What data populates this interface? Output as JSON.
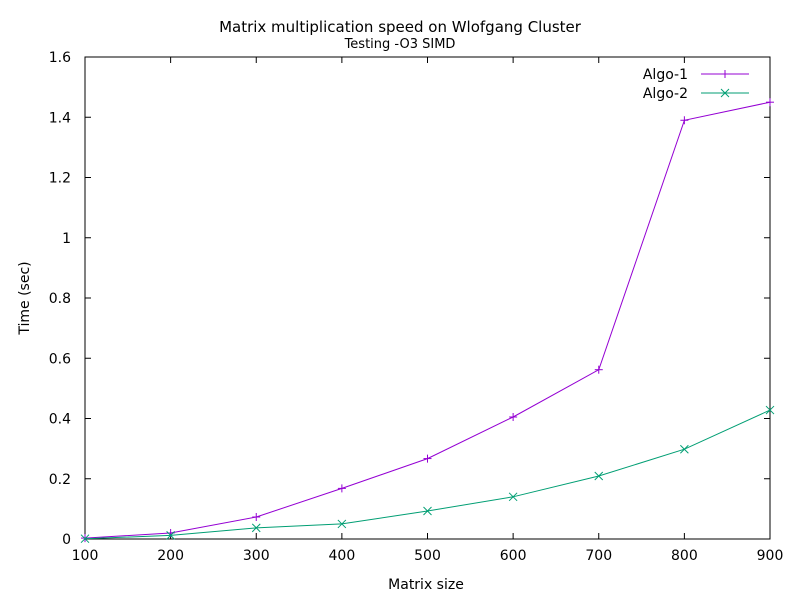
{
  "chart_data": {
    "type": "line",
    "title": "Matrix multiplication speed on Wlofgang Cluster",
    "subtitle": "Testing -O3 SIMD",
    "xlabel": "Matrix size",
    "ylabel": "Time (sec)",
    "x": [
      100,
      200,
      300,
      400,
      500,
      600,
      700,
      800,
      900
    ],
    "xlim": [
      100,
      900
    ],
    "ylim": [
      0,
      1.6
    ],
    "xticks": [
      100,
      200,
      300,
      400,
      500,
      600,
      700,
      800,
      900
    ],
    "yticks": [
      0,
      0.2,
      0.4,
      0.6,
      0.8,
      1,
      1.2,
      1.4,
      1.6
    ],
    "grid": false,
    "legend_position": "top-right",
    "series": [
      {
        "name": "Algo-1",
        "color": "#9400d3",
        "marker": "plus",
        "values": [
          0.003,
          0.02,
          0.073,
          0.168,
          0.267,
          0.405,
          0.562,
          1.39,
          1.45
        ]
      },
      {
        "name": "Algo-2",
        "color": "#009e73",
        "marker": "cross",
        "values": [
          0.001,
          0.012,
          0.037,
          0.05,
          0.093,
          0.14,
          0.209,
          0.298,
          0.428
        ]
      }
    ]
  }
}
